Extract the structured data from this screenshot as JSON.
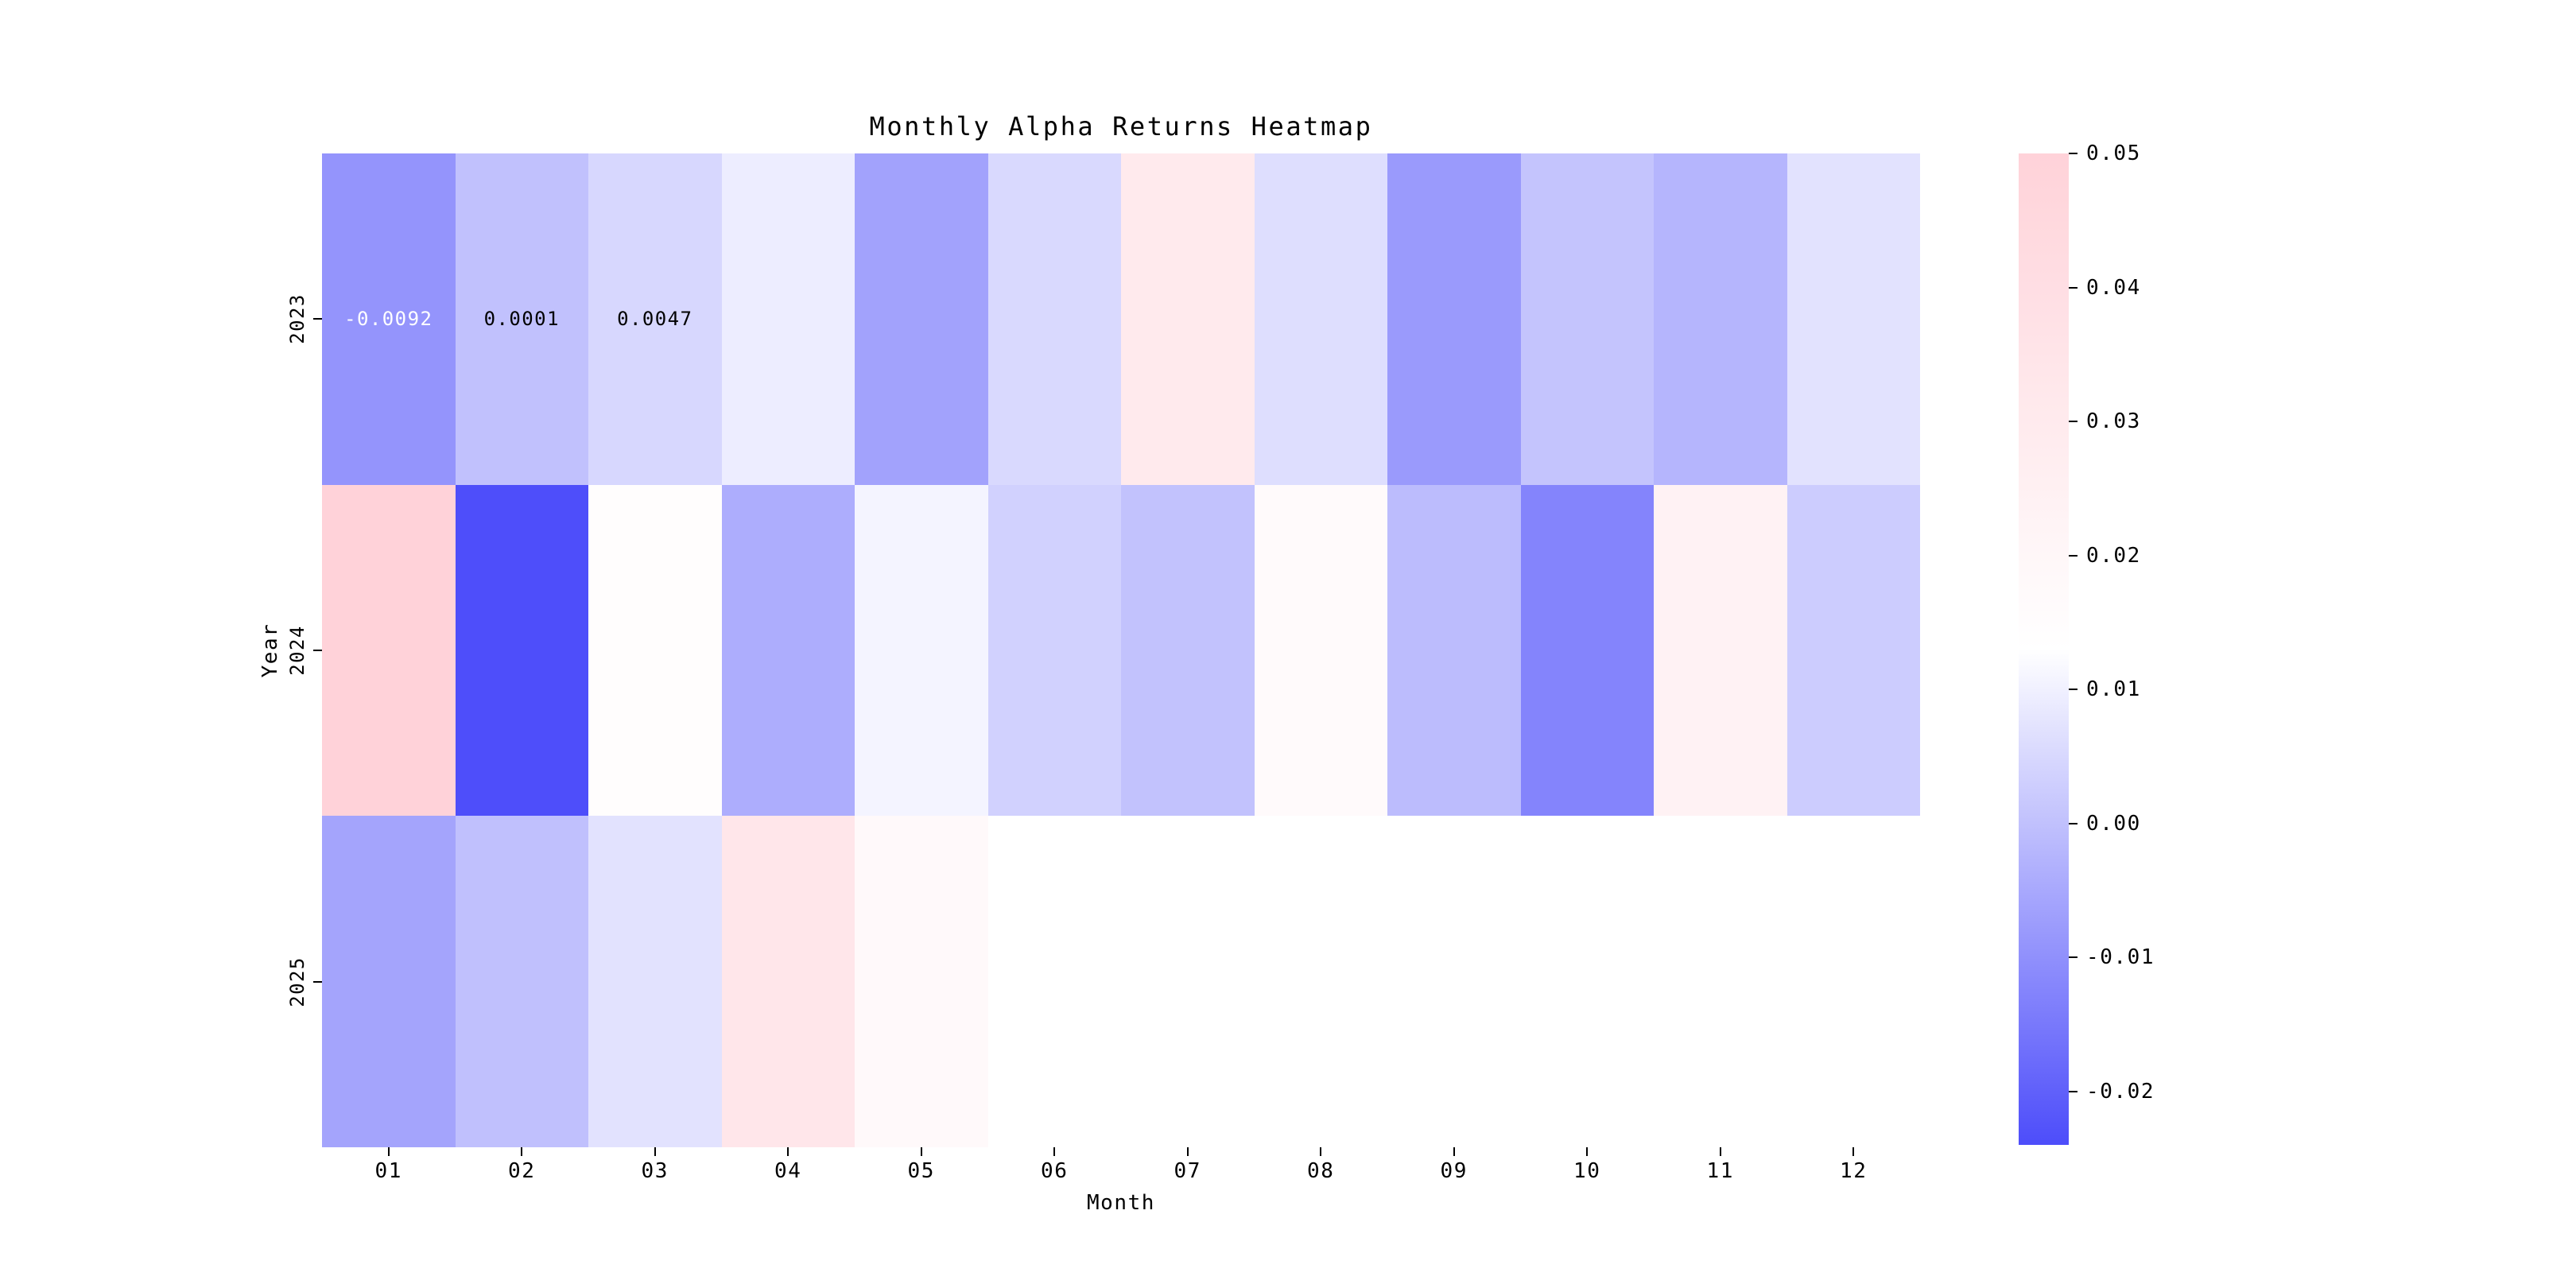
{
  "title": "Monthly Alpha Returns Heatmap",
  "xlabel": "Month",
  "ylabel": "Year",
  "chart_data": {
    "type": "heatmap",
    "x_categories": [
      "01",
      "02",
      "03",
      "04",
      "05",
      "06",
      "07",
      "08",
      "09",
      "10",
      "11",
      "12"
    ],
    "y_categories": [
      "2023",
      "2024",
      "2025"
    ],
    "values": [
      [
        -0.0092,
        0.0001,
        0.0047,
        0.0093,
        -0.0063,
        0.0051,
        0.0303,
        0.0061,
        -0.008,
        0.0007,
        -0.0024,
        0.007
      ],
      [
        0.0496,
        -0.0238,
        0.0145,
        -0.004,
        0.0107,
        0.0034,
        0.0003,
        0.0171,
        -0.0009,
        -0.0126,
        0.0237,
        0.0024
      ],
      [
        -0.0059,
        -0.0001,
        0.007,
        0.0336,
        0.0179,
        null,
        null,
        null,
        null,
        null,
        null,
        null
      ]
    ],
    "annotations": [
      {
        "row": 0,
        "col": 0,
        "text": "-0.0092",
        "text_color": "#ffffff"
      },
      {
        "row": 0,
        "col": 1,
        "text": "0.0001",
        "text_color": "#000000"
      },
      {
        "row": 0,
        "col": 2,
        "text": "0.0047",
        "text_color": "#000000"
      }
    ],
    "colormap": {
      "low_color": "#4d4dfa",
      "mid_color": "#ffffff",
      "high_color": "#ffd2d9",
      "nan_color": "#ffffff",
      "vmin": -0.024,
      "center": 0.013,
      "vmax": 0.05
    },
    "colorbar": {
      "tick_labels": [
        "0.05",
        "0.04",
        "0.03",
        "0.02",
        "0.01",
        "0.00",
        "-0.01",
        "-0.02"
      ],
      "tick_values": [
        0.05,
        0.04,
        0.03,
        0.02,
        0.01,
        0.0,
        -0.01,
        -0.02
      ]
    },
    "grid": false,
    "legend_position": "right-colorbar"
  }
}
